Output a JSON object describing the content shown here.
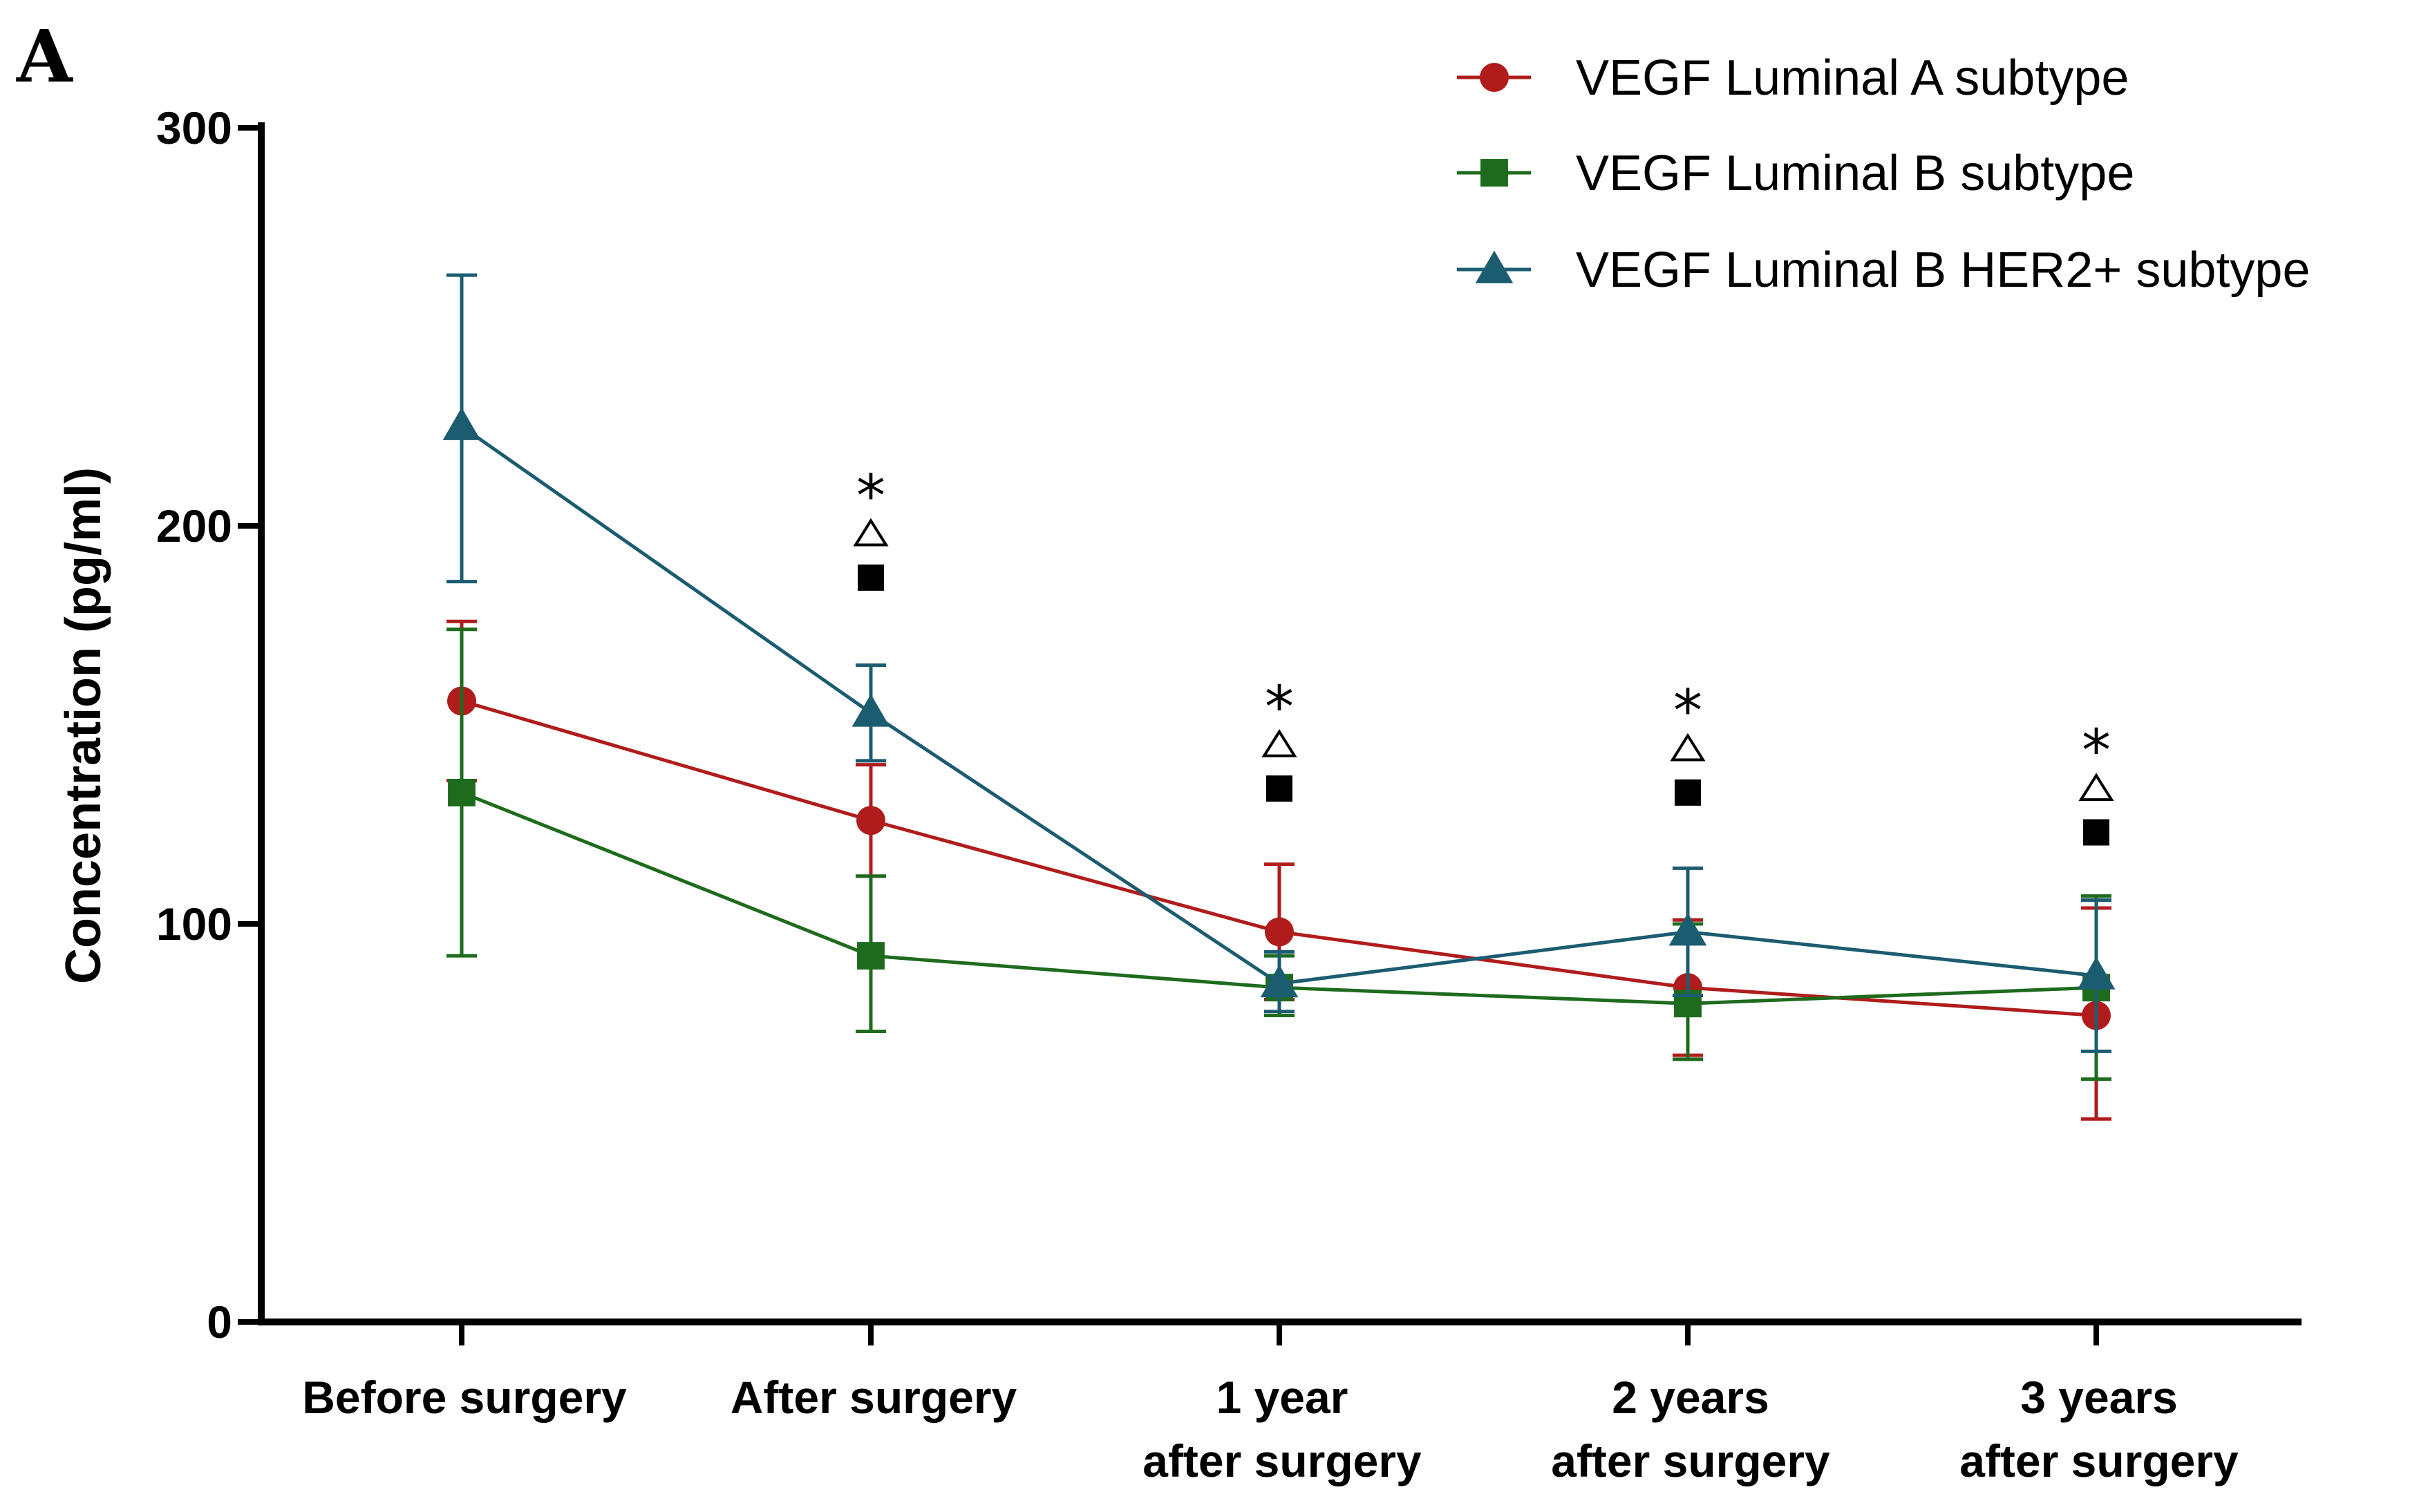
{
  "panel_label": "A",
  "chart_data": {
    "type": "line",
    "title": "",
    "xlabel": "",
    "ylabel": "Concentration (pg/ml)",
    "ylim": [
      0,
      300
    ],
    "yticks": [
      "0",
      "100",
      "200",
      "300"
    ],
    "categories": [
      [
        "Before surgery"
      ],
      [
        "After surgery"
      ],
      [
        "1 year",
        "after surgery"
      ],
      [
        "2 years",
        "after surgery"
      ],
      [
        "3 years",
        "after surgery"
      ]
    ],
    "series": [
      {
        "name": "VEGF Luminal A subtype",
        "color": "#B01C1C",
        "marker": "circle",
        "values": [
          156,
          126,
          98,
          84,
          77
        ],
        "err_upper": [
          176,
          140,
          115,
          101,
          104
        ],
        "err_lower": [
          136,
          112,
          81,
          67,
          51
        ]
      },
      {
        "name": "VEGF Luminal B subtype",
        "color": "#1E6B1E",
        "marker": "square",
        "values": [
          133,
          92,
          84,
          80,
          84
        ],
        "err_upper": [
          174,
          112,
          92,
          100,
          107
        ],
        "err_lower": [
          92,
          73,
          77,
          66,
          61
        ]
      },
      {
        "name": "VEGF Luminal B HER2+ subtype",
        "color": "#1B5C70",
        "marker": "triangle",
        "values": [
          225,
          153,
          85,
          98,
          87
        ],
        "err_upper": [
          263,
          165,
          93,
          114,
          106
        ],
        "err_lower": [
          186,
          141,
          78,
          82,
          68
        ]
      }
    ],
    "significance": [
      null,
      {
        "star": "*",
        "triangle_y": 198,
        "square_y": 187
      },
      {
        "star": "*",
        "triangle_y": 145,
        "square_y": 134
      },
      {
        "star": "*",
        "triangle_y": 144,
        "square_y": 133
      },
      {
        "star": "*",
        "triangle_y": 134,
        "square_y": 123
      }
    ],
    "legend_position": "top-right",
    "grid": false
  }
}
